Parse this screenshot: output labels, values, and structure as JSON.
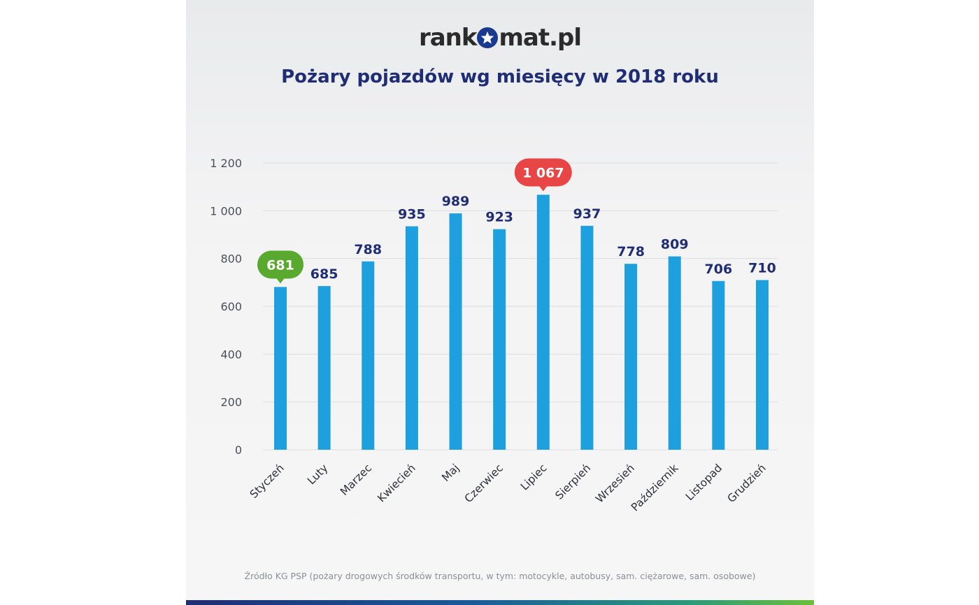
{
  "header": {
    "logo_part1": "rank",
    "logo_part2": "mat.pl",
    "logo_icon": "star-icon"
  },
  "chart_data": {
    "type": "bar",
    "title": "Pożary pojazdów wg miesięcy w 2018 roku",
    "xlabel": "",
    "ylabel": "",
    "ylim": [
      0,
      1200
    ],
    "yticks": [
      0,
      200,
      400,
      600,
      800,
      1000,
      1200
    ],
    "ytick_labels": [
      "0",
      "200",
      "400",
      "600",
      "800",
      "1 000",
      "1 200"
    ],
    "grid": true,
    "categories": [
      "Styczeń",
      "Luty",
      "Marzec",
      "Kwiecień",
      "Maj",
      "Czerwiec",
      "Lipiec",
      "Sierpień",
      "Wrzesień",
      "Październik",
      "Listopad",
      "Grudzień"
    ],
    "values": [
      681,
      685,
      788,
      935,
      989,
      923,
      1067,
      937,
      778,
      809,
      706,
      710
    ],
    "value_labels": [
      "681",
      "685",
      "788",
      "935",
      "989",
      "923",
      "1 067",
      "937",
      "778",
      "809",
      "706",
      "710"
    ],
    "highlight_min_index": 0,
    "highlight_max_index": 6
  },
  "colors": {
    "bar": "#1e9fde",
    "label": "#1f2d74",
    "min_badge": "#5aa92f",
    "max_badge": "#e84646",
    "grid": "#dcdde0",
    "tick_text": "#4a4f59"
  },
  "footer": {
    "source": "Źródło KG PSP (pożary drogowych środków transportu, w tym: motocykle, autobusy, sam. ciężarowe, sam. osobowe)"
  }
}
